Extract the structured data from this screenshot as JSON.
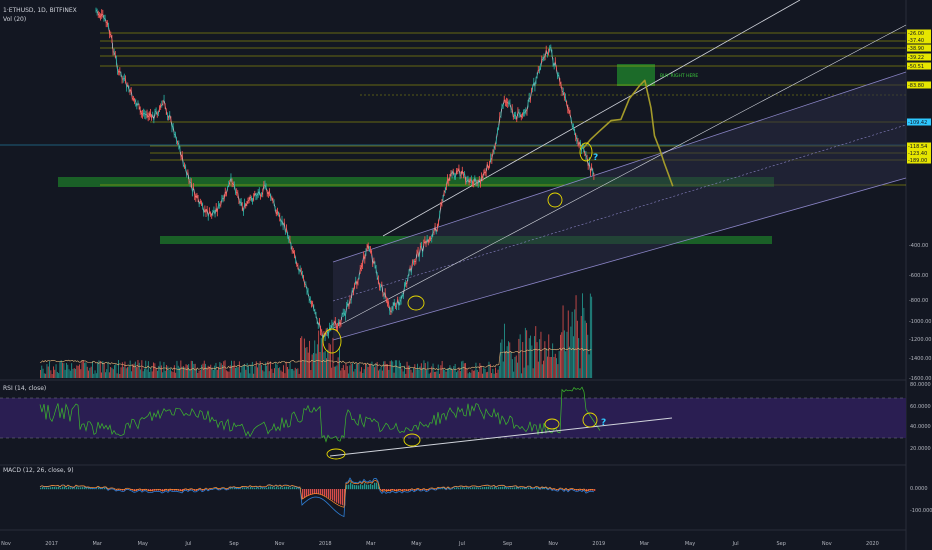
{
  "header": {
    "symbol": "1·ETHUSD, 1D, BITFINEX",
    "volume": "Vol (20)",
    "rsi": "RSI (14, close)",
    "macd": "MACD (12, 26, close, 9)"
  },
  "annotations": {
    "buy_label": "BUY RIGHT HERE",
    "question_mark": "?"
  },
  "colors": {
    "background": "#131722",
    "yellow_line": "#d4d400",
    "green_zone": "#1e7a2a",
    "rsi_band": "#2b1f55",
    "rsi_line": "#3dba2c",
    "macd_line": "#2e7fd6",
    "signal_line": "#ff8b2b",
    "channel": "#8a84c6",
    "cyan_text": "#2ec8ff"
  },
  "chart_data": [
    {
      "type": "line",
      "pane": "price",
      "title": "1·ETHUSD, 1D, BITFINEX",
      "scale": "log",
      "y_axis_labels": [
        "-400.00",
        "-600.00",
        "-800.00",
        "-1000.00",
        "-1200.00",
        "-1400.00",
        "-1600.00",
        "-2200.00"
      ],
      "level_labels": [
        "-26.00",
        "-37.40",
        "-38.90",
        "-39.22",
        "-50.51",
        "-83.80",
        "-109.42",
        "-118.54",
        "-123.40",
        "-189.00"
      ],
      "x_ticks": [
        "Nov",
        "2017",
        "Mar",
        "May",
        "Jul",
        "Sep",
        "Nov",
        "2018",
        "Mar",
        "May",
        "Jul",
        "Sep",
        "Nov",
        "2019",
        "Mar",
        "May",
        "Jul",
        "Sep",
        "Nov",
        "2020"
      ],
      "series": [
        {
          "values": [
            -30,
            -35,
            -60,
            -75,
            -95,
            -100,
            -85,
            -120,
            -190,
            -260,
            -300,
            -270,
            -200,
            -280,
            -240,
            -220,
            -290,
            -380,
            -560,
            -800,
            -1150,
            -1050,
            -900,
            -620,
            -420,
            -640,
            -860,
            -760,
            -500,
            -420,
            -350,
            -200,
            -180,
            -210,
            -200,
            -150,
            -80,
            -100,
            -90,
            -60,
            -45,
            -70,
            -110,
            -150,
            -200
          ]
        }
      ]
    },
    {
      "type": "bar",
      "pane": "volume",
      "title": "Vol (20)"
    },
    {
      "type": "line",
      "pane": "rsi",
      "title": "RSI (14, close)",
      "y_axis_labels": [
        "80.0000",
        "60.0000",
        "40.0000",
        "20.0000"
      ],
      "ylim": [
        15,
        85
      ]
    },
    {
      "type": "line",
      "pane": "macd",
      "title": "MACD (12, 26, close, 9)",
      "y_axis_labels": [
        "0.0000",
        "-100.0000"
      ]
    }
  ]
}
